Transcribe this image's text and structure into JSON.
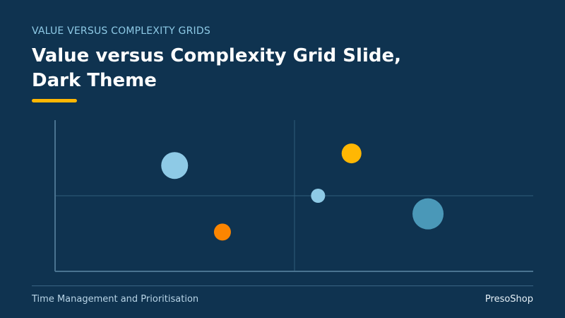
{
  "slide": {
    "eyebrow": "VALUE VERSUS COMPLEXITY GRIDS",
    "title": "Value versus Complexity Grid Slide, Dark Theme",
    "footer_left": "Time Management and Prioritisation",
    "footer_right": "PresoShop"
  },
  "chart_data": {
    "type": "bubble",
    "x": [
      2.5,
      3.5,
      6.2,
      5.5,
      7.8
    ],
    "values": [
      7.0,
      2.6,
      7.8,
      5.0,
      3.8
    ],
    "sizes": [
      19,
      12,
      14,
      10,
      22
    ],
    "colors": [
      "#8ecae6",
      "#fb8500",
      "#ffb703",
      "#8ecae6",
      "#4a98b8"
    ],
    "xlim": [
      0,
      10
    ],
    "ylim": [
      0,
      10
    ]
  }
}
